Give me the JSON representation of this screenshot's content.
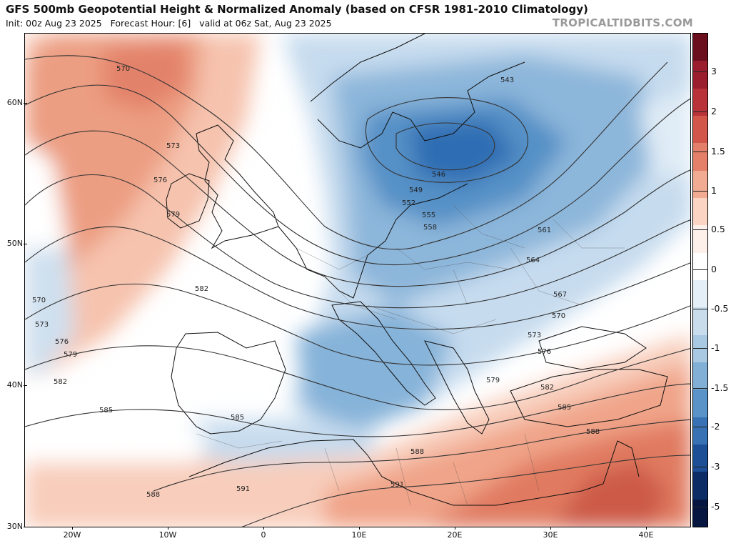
{
  "header": {
    "title": "GFS 500mb Geopotential Height & Normalized Anomaly (based on CFSR 1981-2010 Climatology)",
    "subtitle": "Init: 00z Aug 23 2025   Forecast Hour: [6]   valid at 06z Sat, Aug 23 2025",
    "brand": "TROPICALTIDBITS.COM"
  },
  "axes": {
    "lat_labels": [
      "60N",
      "50N",
      "40N",
      "30N"
    ],
    "lon_labels": [
      "20W",
      "10W",
      "0",
      "10E",
      "20E",
      "30E",
      "40E"
    ]
  },
  "colorbar": {
    "labels": [
      "3",
      "2",
      "1.5",
      "1",
      "0.5",
      "0",
      "-0.5",
      "-1",
      "-1.5",
      "-2",
      "-3",
      "-5"
    ],
    "colors": [
      "#6b0f1f",
      "#9a1e2e",
      "#b9323a",
      "#d2574a",
      "#e4806a",
      "#f2ab93",
      "#fbd4c4",
      "#fdf0ea",
      "#ffffff",
      "#e4eef6",
      "#c9dcec",
      "#a9c8e2",
      "#82afd6",
      "#5993c7",
      "#3872b4",
      "#1c4f96",
      "#0c2c66",
      "#061640"
    ]
  },
  "contours": {
    "labels": [
      "570",
      "573",
      "576",
      "579",
      "582",
      "585",
      "588",
      "591",
      "546",
      "549",
      "552",
      "555",
      "558",
      "561",
      "564",
      "567",
      "570",
      "573",
      "576",
      "579",
      "582",
      "585",
      "588",
      "543",
      "570",
      "573",
      "576",
      "579",
      "582",
      "585",
      "588",
      "591"
    ]
  },
  "legend": {
    "anomaly_colors": {
      "strong_positive": "#d9654e",
      "weak_positive": "#f6c3ae",
      "neutral": "#ffffff",
      "weak_negative": "#c6dbee",
      "strong_negative": "#2f6db3"
    }
  }
}
